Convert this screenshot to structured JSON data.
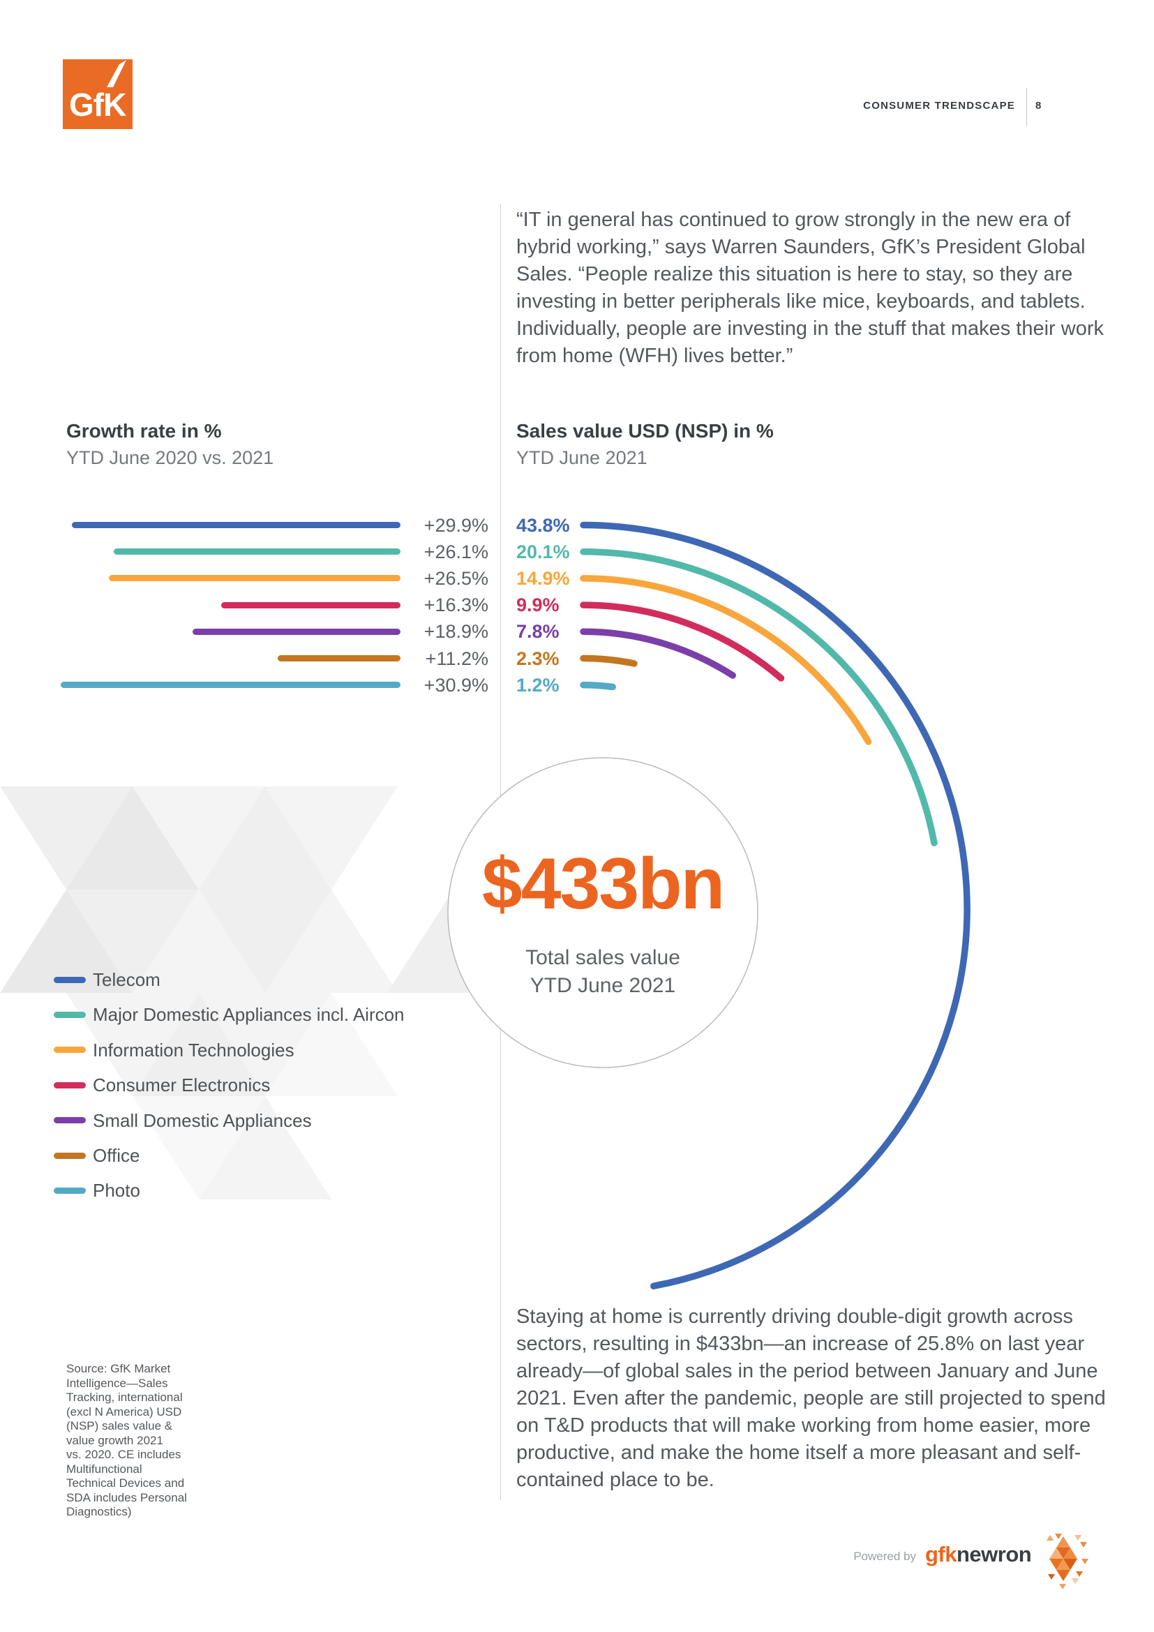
{
  "header": {
    "label": "CONSUMER TRENDSCAPE",
    "page_number": "8"
  },
  "brand": {
    "logo_text": "GfK"
  },
  "quote": "“IT in general has continued to grow strongly in the new era of hybrid working,” says Warren Saunders, GfK’s President Global Sales. “People realize this situation is here to stay, so they are investing in better peripherals like mice, keyboards, and tablets. Individually, people are investing in the stuff that makes their work from home (WFH) lives better.”",
  "body_paragraph": "Staying at home is currently driving double-digit growth across sectors, resulting in $433bn—an increase of 25.8% on last year already—of global sales in the period between January and June 2021. Even after the pandemic, people are still projected to spend on T&D products that will make working from home easier, more productive, and make the home itself a more pleasant and self-contained place to be.",
  "source_note": "Source: GfK Market\nIntelligence—Sales\nTracking, international\n(excl N America) USD\n(NSP) sales value &\nvalue growth 2021\nvs. 2020. CE includes\nMultifunctional\nTechnical Devices and\nSDA includes Personal\nDiagnostics)",
  "footer": {
    "powered_by": "Powered by",
    "brand_orange": "gfk",
    "brand_dark": "newron"
  },
  "colors": {
    "accent_orange": "#EC6520",
    "circle_outline": "#B7BABC",
    "divider_gray": "#CFD2D4",
    "series": [
      "#3E68B4",
      "#52B9AA",
      "#F8A63C",
      "#D22C5C",
      "#7B3FA9",
      "#C3761F",
      "#54A9C6"
    ]
  },
  "chart_data": [
    {
      "type": "bar",
      "title": "Growth rate in %",
      "subtitle": "YTD June 2020 vs. 2021",
      "orientation": "horizontal-right-aligned",
      "categories": [
        "Telecom",
        "Major Domestic Appliances incl. Aircon",
        "Information Technologies",
        "Consumer Electronics",
        "Small Domestic Appliances",
        "Office",
        "Photo"
      ],
      "values": [
        29.9,
        26.1,
        26.5,
        16.3,
        18.9,
        11.2,
        30.9
      ],
      "value_labels": [
        "+29.9%",
        "+26.1%",
        "+26.5%",
        "+16.3%",
        "+18.9%",
        "+11.2%",
        "+30.9%"
      ],
      "unit": "%",
      "colors": [
        "#3E68B4",
        "#52B9AA",
        "#F8A63C",
        "#D22C5C",
        "#7B3FA9",
        "#C3761F",
        "#54A9C6"
      ],
      "grid": false,
      "legend_position": "bottom-left"
    },
    {
      "type": "radial-bar",
      "title": "Sales value USD (NSP) in %",
      "subtitle": "YTD June 2021",
      "categories": [
        "Telecom",
        "Major Domestic Appliances incl. Aircon",
        "Information Technologies",
        "Consumer Electronics",
        "Small Domestic Appliances",
        "Office",
        "Photo"
      ],
      "values": [
        43.8,
        20.1,
        14.9,
        9.9,
        7.8,
        2.3,
        1.2
      ],
      "value_labels": [
        "43.8%",
        "20.1%",
        "14.9%",
        "9.9%",
        "7.8%",
        "2.3%",
        "1.2%"
      ],
      "unit": "%",
      "colors": [
        "#3E68B4",
        "#52B9AA",
        "#F8A63C",
        "#D22C5C",
        "#7B3FA9",
        "#C3761F",
        "#54A9C6"
      ],
      "center_value": "$433bn",
      "center_label": "Total sales value\nYTD June 2021"
    }
  ]
}
